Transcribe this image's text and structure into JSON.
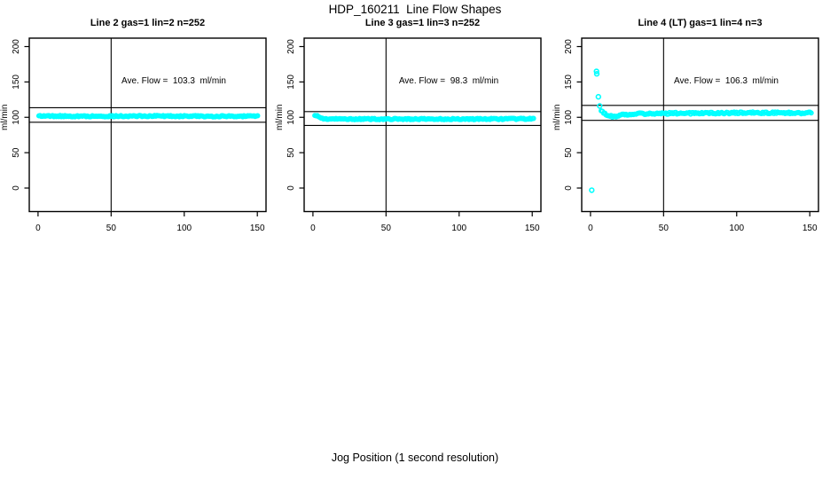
{
  "title": "HDP_160211  Line Flow Shapes",
  "xlabel": "Jog Position (1 second resolution)",
  "ylabel": "ml/min",
  "colors": {
    "points": "#00FFFF",
    "axis": "#000000",
    "text": "#000000",
    "background": "#FFFFFF"
  },
  "chart_data": [
    {
      "type": "scatter",
      "title": "Line 2 gas=1 lin=2 n=252",
      "annotation": "Ave. Flow =  103.3  ml/min",
      "ave_flow_ml_min": 103.3,
      "n": 252,
      "xlim": [
        0,
        150
      ],
      "ylim": [
        0,
        200
      ],
      "xticks": [
        0,
        50,
        100,
        150
      ],
      "yticks": [
        0,
        50,
        100,
        150,
        200
      ],
      "vline_x": 50,
      "hlines": [
        113.6,
        93.0
      ],
      "band": [
        [
          0.6,
          103
        ],
        [
          2,
          101.8
        ],
        [
          30,
          101.5
        ],
        [
          80,
          101.8
        ],
        [
          120,
          101.5
        ],
        [
          151,
          101.6
        ]
      ],
      "band_jitter": 0.9,
      "outliers": []
    },
    {
      "type": "scatter",
      "title": "Line 3 gas=1 lin=3 n=252",
      "annotation": "Ave. Flow =  98.3  ml/min",
      "ave_flow_ml_min": 98.3,
      "n": 252,
      "xlim": [
        0,
        150
      ],
      "ylim": [
        0,
        200
      ],
      "xticks": [
        0,
        50,
        100,
        150
      ],
      "yticks": [
        0,
        50,
        100,
        150,
        200
      ],
      "vline_x": 50,
      "hlines": [
        108.1,
        88.5
      ],
      "band": [
        [
          1.3,
          103.5
        ],
        [
          2.5,
          102.5
        ],
        [
          4,
          100.5
        ],
        [
          6,
          98.5
        ],
        [
          10,
          97.6
        ],
        [
          60,
          97.5
        ],
        [
          120,
          97.6
        ],
        [
          151,
          97.8
        ]
      ],
      "band_jitter": 0.9,
      "outliers": []
    },
    {
      "type": "scatter",
      "title": "Line 4 (LT) gas=1 lin=4 n=3",
      "annotation": "Ave. Flow =  106.3  ml/min",
      "ave_flow_ml_min": 106.3,
      "n": 3,
      "xlim": [
        0,
        150
      ],
      "ylim": [
        0,
        200
      ],
      "xticks": [
        0,
        50,
        100,
        150
      ],
      "yticks": [
        0,
        50,
        100,
        150,
        200
      ],
      "vline_x": 50,
      "hlines": [
        116.9,
        95.7
      ],
      "band": [
        [
          7.3,
          110.5
        ],
        [
          9,
          106
        ],
        [
          12,
          101.5
        ],
        [
          16,
          101
        ],
        [
          22,
          103.5
        ],
        [
          30,
          105
        ],
        [
          45,
          105.5
        ],
        [
          80,
          106
        ],
        [
          120,
          106.5
        ],
        [
          151,
          106
        ]
      ],
      "band_jitter": 1.3,
      "outliers": [
        [
          0.85,
          -3
        ],
        [
          4.1,
          165
        ],
        [
          4.3,
          161.5
        ],
        [
          5.4,
          129
        ],
        [
          6.3,
          116
        ]
      ]
    }
  ]
}
